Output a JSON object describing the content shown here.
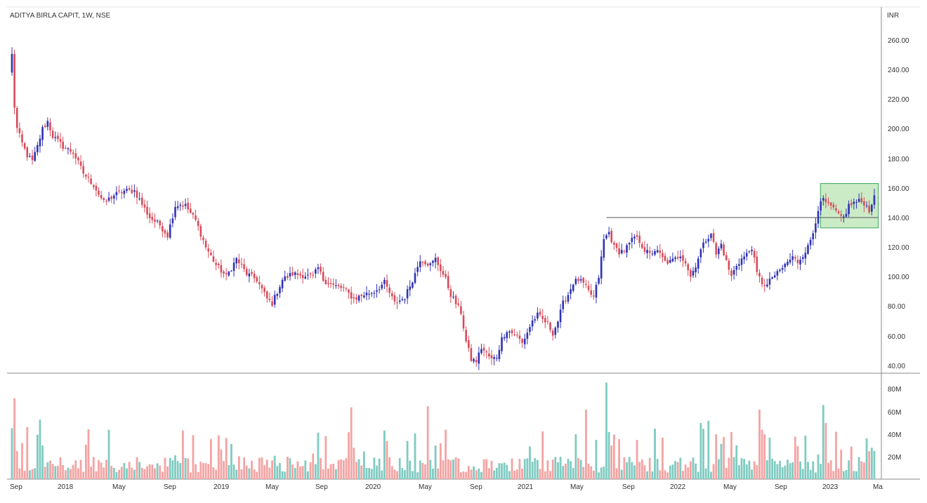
{
  "colors": {
    "up": "#2f32b3",
    "down": "#d64b5a",
    "vol_up": "#7fcbc1",
    "vol_down": "#f4a3a3",
    "box_fill": "#b9e4b4",
    "box_stroke": "#3aa55a",
    "grid_border": "#8a8a8a"
  },
  "chart_data": {
    "type": "candlestick",
    "title": "ADITYA BIRLA CAPIT, 1W, NSE",
    "currency": "INR",
    "price_ticks": [
      "260.00",
      "240.00",
      "220.00",
      "200.00",
      "180.00",
      "160.00",
      "140.00",
      "120.00",
      "100.00",
      "80.00",
      "60.00",
      "40.00"
    ],
    "volume_ticks": [
      "80M",
      "60M",
      "40M",
      "20M"
    ],
    "time_labels": [
      "Sep",
      "2018",
      "May",
      "Sep",
      "2019",
      "May",
      "Sep",
      "2020",
      "May",
      "Sep",
      "2021",
      "May",
      "Sep",
      "2022",
      "May",
      "Sep",
      "2023",
      "Ma"
    ],
    "ylim": [
      36,
      268
    ],
    "volume_max_millions": 88,
    "price_anchors": [
      [
        0,
        250
      ],
      [
        1,
        215
      ],
      [
        2,
        200
      ],
      [
        4,
        190
      ],
      [
        6,
        182
      ],
      [
        8,
        178
      ],
      [
        10,
        188
      ],
      [
        12,
        200
      ],
      [
        14,
        205
      ],
      [
        16,
        195
      ],
      [
        20,
        188
      ],
      [
        24,
        184
      ],
      [
        28,
        170
      ],
      [
        32,
        162
      ],
      [
        36,
        150
      ],
      [
        40,
        155
      ],
      [
        44,
        158
      ],
      [
        48,
        158
      ],
      [
        50,
        152
      ],
      [
        54,
        140
      ],
      [
        58,
        135
      ],
      [
        61,
        128
      ],
      [
        64,
        148
      ],
      [
        66,
        149
      ],
      [
        68,
        148
      ],
      [
        72,
        138
      ],
      [
        76,
        120
      ],
      [
        80,
        108
      ],
      [
        84,
        100
      ],
      [
        88,
        112
      ],
      [
        92,
        102
      ],
      [
        96,
        98
      ],
      [
        100,
        85
      ],
      [
        102,
        82
      ],
      [
        106,
        98
      ],
      [
        110,
        102
      ],
      [
        114,
        101
      ],
      [
        118,
        100
      ],
      [
        120,
        106
      ],
      [
        122,
        98
      ],
      [
        126,
        94
      ],
      [
        130,
        92
      ],
      [
        134,
        85
      ],
      [
        138,
        88
      ],
      [
        142,
        90
      ],
      [
        146,
        96
      ],
      [
        150,
        82
      ],
      [
        154,
        86
      ],
      [
        158,
        102
      ],
      [
        160,
        112
      ],
      [
        164,
        108
      ],
      [
        166,
        112
      ],
      [
        168,
        105
      ],
      [
        170,
        98
      ],
      [
        172,
        88
      ],
      [
        176,
        76
      ],
      [
        178,
        56
      ],
      [
        180,
        44
      ],
      [
        182,
        43
      ],
      [
        184,
        52
      ],
      [
        186,
        48
      ],
      [
        188,
        44
      ],
      [
        190,
        46
      ],
      [
        192,
        58
      ],
      [
        194,
        64
      ],
      [
        198,
        60
      ],
      [
        200,
        55
      ],
      [
        204,
        70
      ],
      [
        206,
        74
      ],
      [
        210,
        68
      ],
      [
        212,
        62
      ],
      [
        214,
        70
      ],
      [
        216,
        82
      ],
      [
        218,
        88
      ],
      [
        220,
        96
      ],
      [
        222,
        98
      ],
      [
        224,
        95
      ],
      [
        226,
        90
      ],
      [
        228,
        86
      ],
      [
        230,
        100
      ],
      [
        232,
        125
      ],
      [
        234,
        130
      ],
      [
        236,
        120
      ],
      [
        238,
        117
      ],
      [
        240,
        118
      ],
      [
        242,
        122
      ],
      [
        244,
        127
      ],
      [
        246,
        124
      ],
      [
        248,
        118
      ],
      [
        250,
        115
      ],
      [
        252,
        118
      ],
      [
        254,
        115
      ],
      [
        256,
        110
      ],
      [
        258,
        110
      ],
      [
        260,
        112
      ],
      [
        262,
        115
      ],
      [
        264,
        110
      ],
      [
        266,
        100
      ],
      [
        268,
        108
      ],
      [
        270,
        118
      ],
      [
        272,
        125
      ],
      [
        274,
        130
      ],
      [
        276,
        115
      ],
      [
        278,
        122
      ],
      [
        280,
        110
      ],
      [
        282,
        100
      ],
      [
        284,
        108
      ],
      [
        286,
        112
      ],
      [
        288,
        115
      ],
      [
        290,
        120
      ],
      [
        292,
        102
      ],
      [
        294,
        96
      ],
      [
        296,
        94
      ],
      [
        298,
        100
      ],
      [
        300,
        102
      ],
      [
        302,
        106
      ],
      [
        304,
        110
      ],
      [
        306,
        113
      ],
      [
        308,
        110
      ],
      [
        312,
        120
      ],
      [
        314,
        130
      ],
      [
        316,
        146
      ],
      [
        318,
        152
      ],
      [
        320,
        148
      ],
      [
        322,
        146
      ],
      [
        324,
        141
      ],
      [
        326,
        140
      ],
      [
        328,
        148
      ],
      [
        330,
        150
      ],
      [
        332,
        151
      ],
      [
        334,
        150
      ],
      [
        336,
        145
      ],
      [
        338,
        155
      ]
    ],
    "box": {
      "x_from": 318,
      "x_to": 339,
      "price_low": 133,
      "price_high": 163
    },
    "resistance": {
      "price": 140,
      "x_from": 233,
      "x_to": 339
    }
  }
}
